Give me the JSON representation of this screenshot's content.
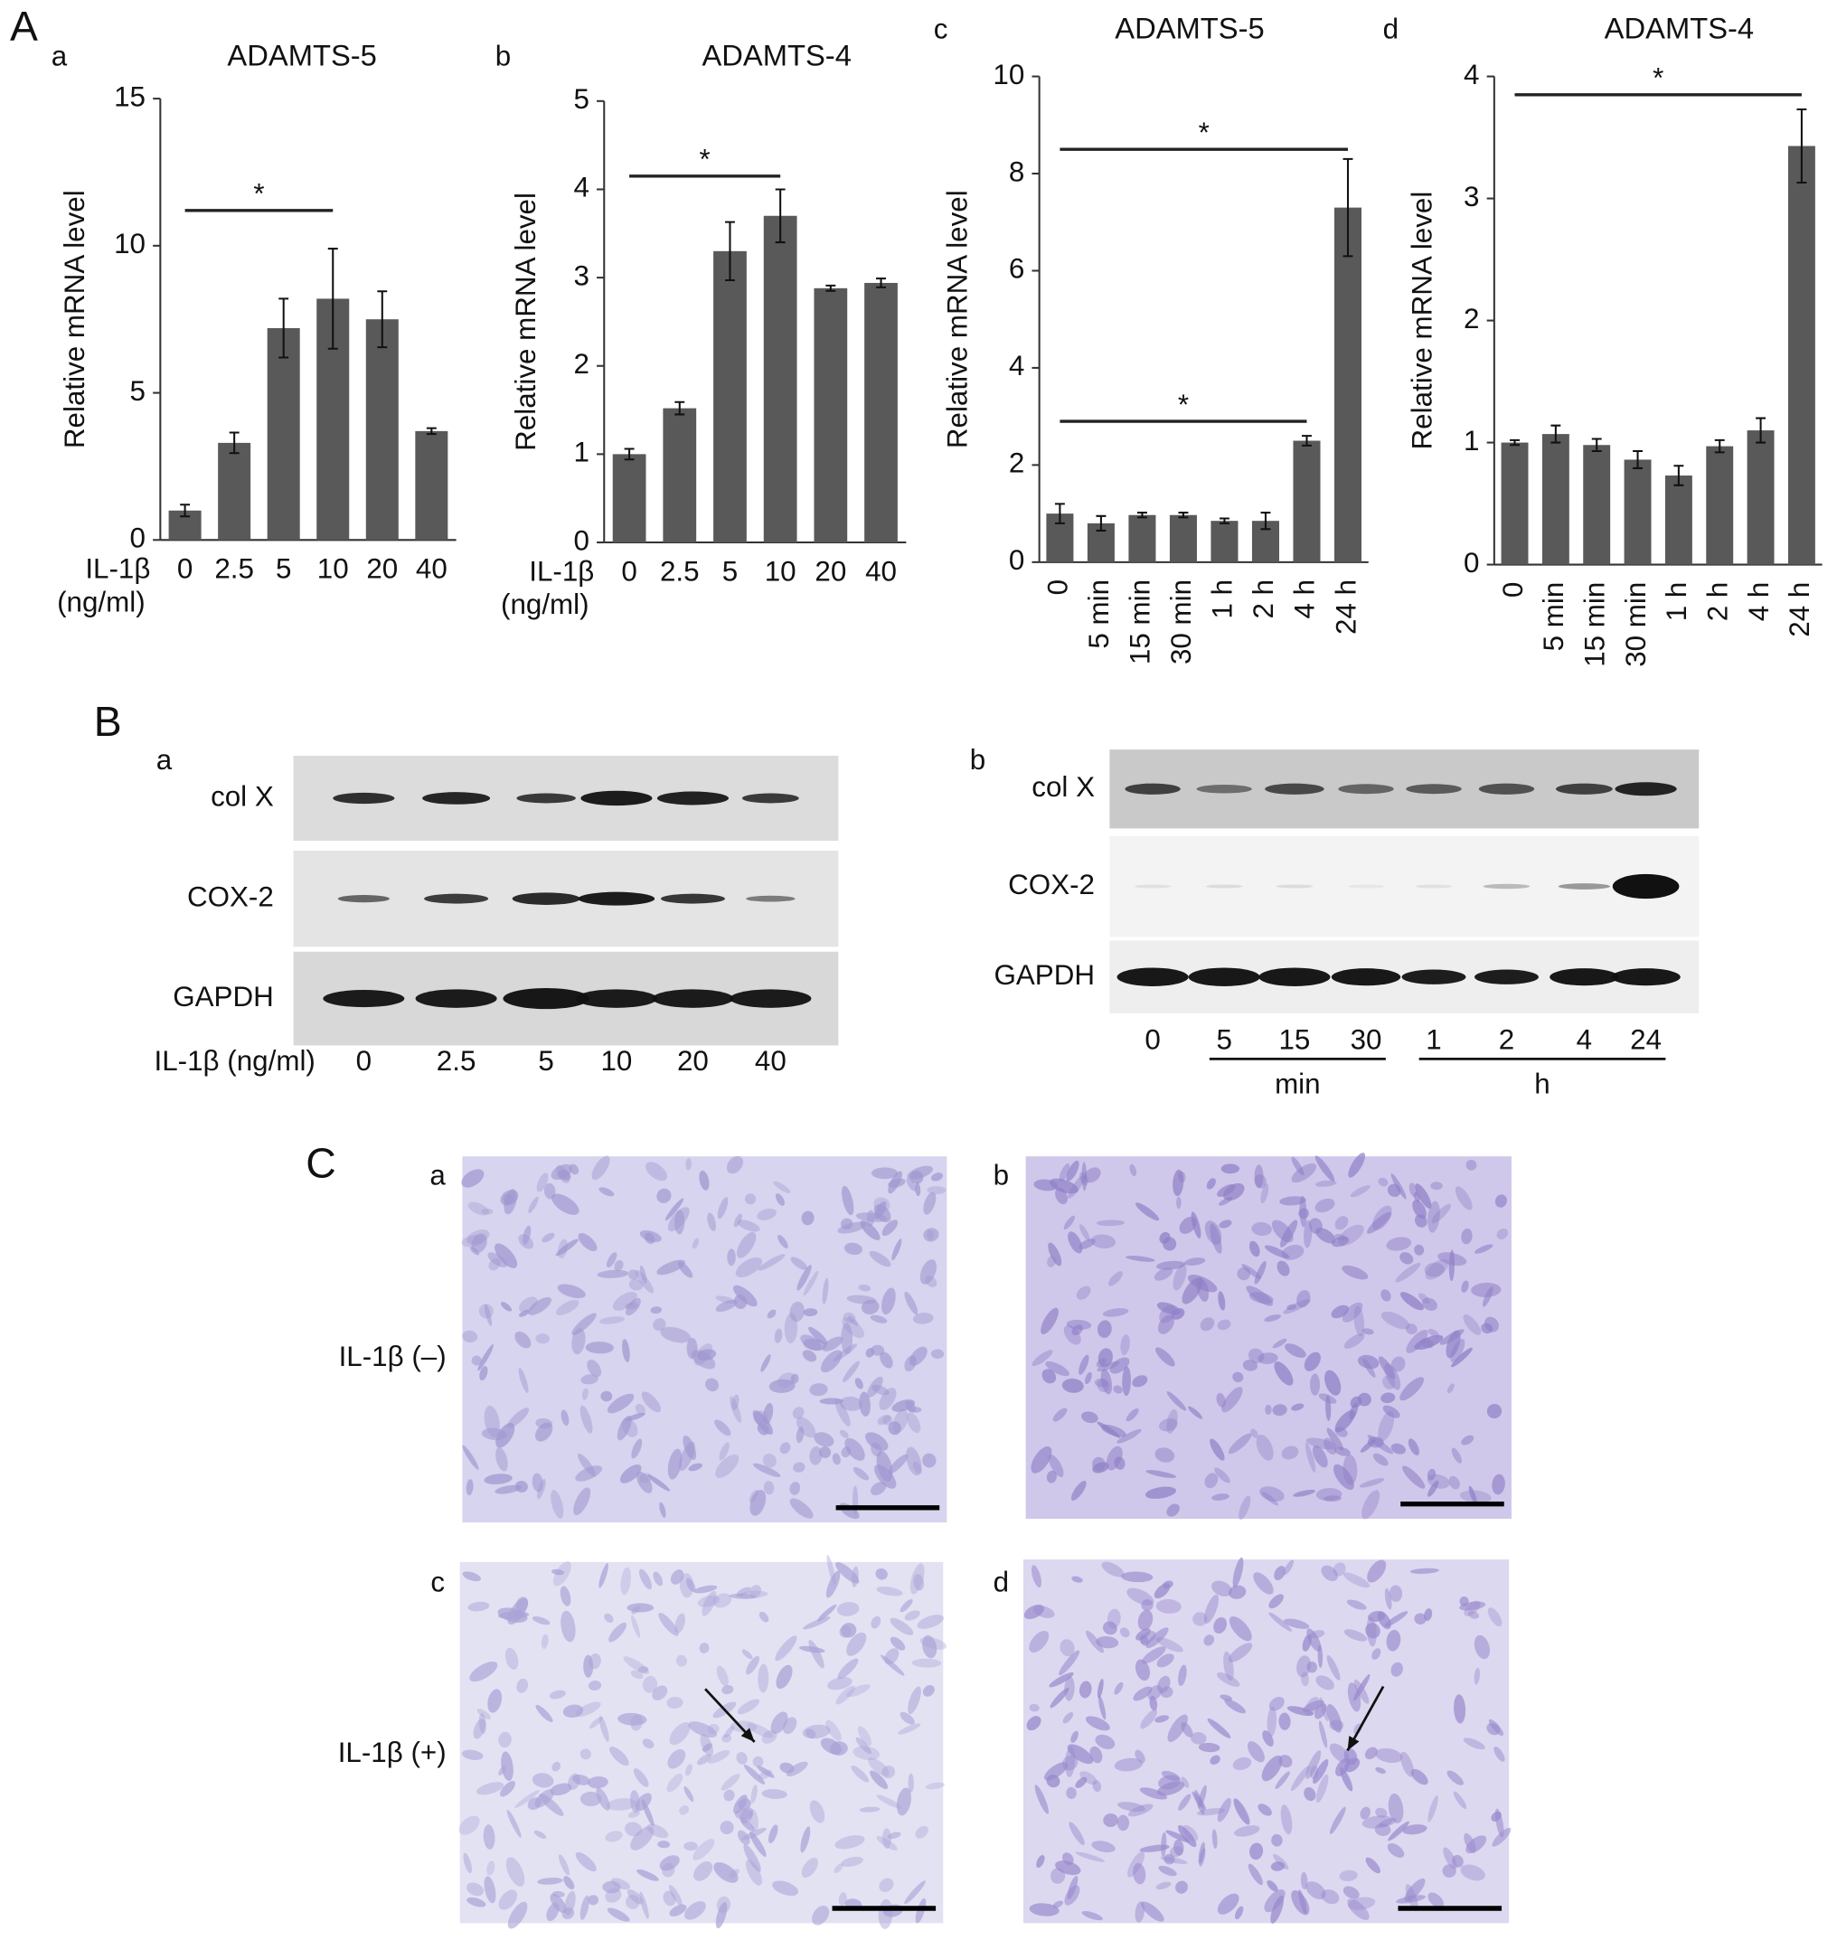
{
  "panel_labels": [
    "A",
    "B",
    "C"
  ],
  "chart_data": [
    {
      "type": "bar",
      "panel": "a",
      "title": "ADAMTS-5",
      "y_label": "Relative mRNA level",
      "x_label": [
        "IL-1β",
        "(ng/ml)"
      ],
      "categories": [
        "0",
        "2.5",
        "5",
        "10",
        "20",
        "40"
      ],
      "values": [
        1.0,
        3.3,
        7.2,
        8.2,
        7.5,
        3.7
      ],
      "errors": [
        0.2,
        0.35,
        1.0,
        1.7,
        0.95,
        0.1
      ],
      "color": "#595959",
      "ylim": [
        0,
        15
      ],
      "yticks": [
        0,
        5,
        10,
        15
      ],
      "xtick_rotation": 0,
      "significance": [
        {
          "from": "0",
          "to": "10",
          "y": 11.2,
          "label": "*"
        }
      ]
    },
    {
      "type": "bar",
      "panel": "b",
      "title": "ADAMTS-4",
      "y_label": "Relative mRNA level",
      "x_label": [
        "IL-1β",
        "(ng/ml)"
      ],
      "categories": [
        "0",
        "2.5",
        "5",
        "10",
        "20",
        "40"
      ],
      "values": [
        1.0,
        1.52,
        3.3,
        3.7,
        2.88,
        2.94
      ],
      "errors": [
        0.06,
        0.07,
        0.33,
        0.3,
        0.03,
        0.05
      ],
      "color": "#595959",
      "ylim": [
        0,
        5
      ],
      "yticks": [
        0,
        1,
        2,
        3,
        4,
        5
      ],
      "xtick_rotation": 0,
      "significance": [
        {
          "from": "0",
          "to": "10",
          "y": 4.15,
          "label": "*"
        }
      ]
    },
    {
      "type": "bar",
      "panel": "c",
      "title": "ADAMTS-5",
      "y_label": "Relative mRNA level",
      "categories": [
        "0",
        "5 min",
        "15 min",
        "30 min",
        "1 h",
        "2 h",
        "4 h",
        "24 h"
      ],
      "values": [
        1.0,
        0.8,
        0.97,
        0.97,
        0.85,
        0.85,
        2.5,
        7.3
      ],
      "errors": [
        0.2,
        0.15,
        0.05,
        0.05,
        0.05,
        0.17,
        0.1,
        1.0
      ],
      "color": "#595959",
      "ylim": [
        0,
        10
      ],
      "yticks": [
        0,
        2,
        4,
        6,
        8,
        10
      ],
      "xtick_rotation": 90,
      "significance": [
        {
          "from": "0",
          "to": "24 h",
          "y": 8.5,
          "label": "*"
        },
        {
          "from": "0",
          "to": "4 h",
          "y": 2.9,
          "label": "*"
        }
      ]
    },
    {
      "type": "bar",
      "panel": "d",
      "title": "ADAMTS-4",
      "y_label": "Relative mRNA level",
      "categories": [
        "0",
        "5 min",
        "15 min",
        "30 min",
        "1 h",
        "2 h",
        "4 h",
        "24 h"
      ],
      "values": [
        1.0,
        1.07,
        0.98,
        0.86,
        0.73,
        0.97,
        1.1,
        3.43
      ],
      "errors": [
        0.02,
        0.07,
        0.05,
        0.07,
        0.08,
        0.05,
        0.1,
        0.3
      ],
      "color": "#595959",
      "ylim": [
        0,
        4
      ],
      "yticks": [
        0,
        1,
        2,
        3,
        4
      ],
      "xtick_rotation": 90,
      "significance": [
        {
          "from": "0",
          "to": "24 h",
          "y": 3.85,
          "label": "*"
        }
      ]
    }
  ],
  "blots": [
    {
      "panel": "a",
      "rows": [
        "col X",
        "COX-2",
        "GAPDH"
      ],
      "x_label": "IL-1β (ng/ml)",
      "lanes": [
        "0",
        "2.5",
        "5",
        "10",
        "20",
        "40"
      ]
    },
    {
      "panel": "b",
      "rows": [
        "col X",
        "COX-2",
        "GAPDH"
      ],
      "lanes": [
        "0",
        "5",
        "15",
        "30",
        "1",
        "2",
        "4",
        "24"
      ],
      "groups": [
        {
          "label": "min",
          "from": "5",
          "to": "30"
        },
        {
          "label": "h",
          "from": "1",
          "to": "24"
        }
      ]
    }
  ],
  "micrographs": {
    "panels": [
      "a",
      "b",
      "c",
      "d"
    ],
    "row_labels": [
      "IL-1β (–)",
      "IL-1β (+)"
    ]
  }
}
